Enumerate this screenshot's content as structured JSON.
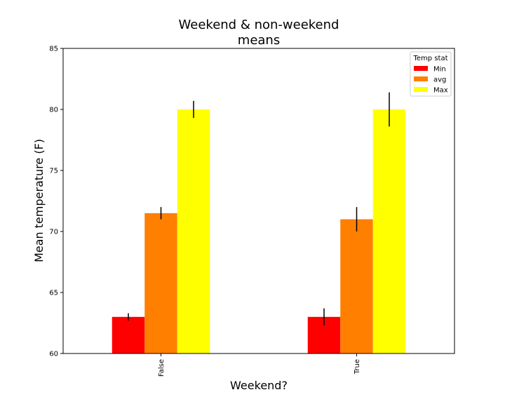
{
  "chart_data": {
    "type": "bar",
    "title_lines": [
      "Weekend & non-weekend",
      "means"
    ],
    "xlabel": "Weekend?",
    "ylabel": "Mean temperature (F)",
    "ylim": [
      60,
      85
    ],
    "yticks": [
      60,
      65,
      70,
      75,
      80,
      85
    ],
    "categories": [
      "False",
      "True"
    ],
    "series": [
      {
        "name": "Min",
        "color": "#ff0000",
        "values": [
          63.0,
          63.0
        ],
        "errors": [
          0.3,
          0.7
        ]
      },
      {
        "name": "avg",
        "color": "#ff7f00",
        "values": [
          71.5,
          71.0
        ],
        "errors": [
          0.5,
          1.0
        ]
      },
      {
        "name": "Max",
        "color": "#ffff00",
        "values": [
          80.0,
          80.0
        ],
        "errors": [
          0.7,
          1.4
        ]
      }
    ],
    "legend": {
      "title": "Temp stat",
      "position": "upper right"
    },
    "grid": false
  }
}
